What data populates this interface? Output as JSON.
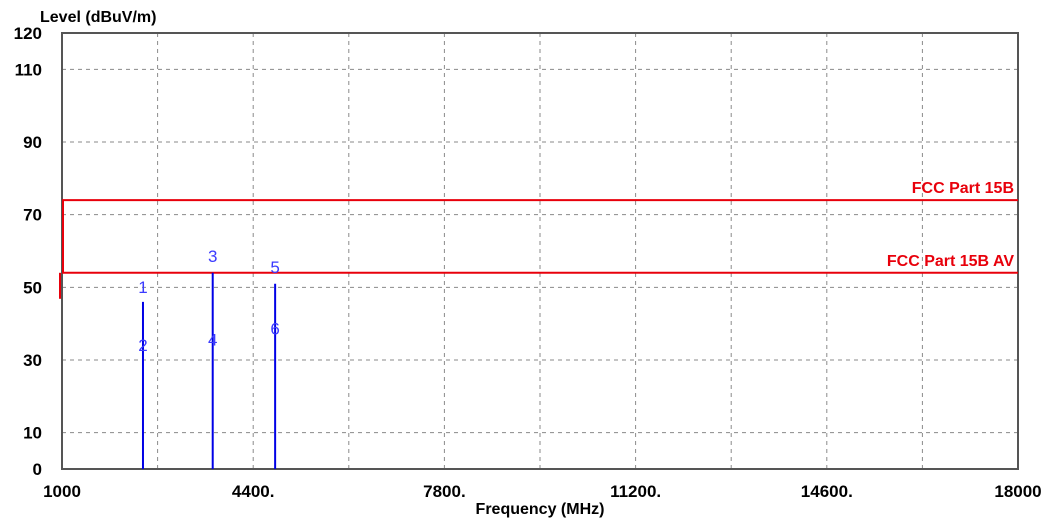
{
  "chart_data": {
    "type": "line",
    "title": "",
    "ylabel": "Level (dBuV/m)",
    "xlabel": "Frequency (MHz)",
    "xlim": [
      1000,
      18000
    ],
    "ylim": [
      0,
      120
    ],
    "x_gridlines": [
      1000,
      2700,
      4400,
      6100,
      7800,
      9500,
      11200,
      12900,
      14600,
      16300,
      18000
    ],
    "y_gridlines": [
      10,
      30,
      50,
      70,
      90,
      110
    ],
    "x_tick_labels": [
      {
        "value": 1000,
        "label": "1000"
      },
      {
        "value": 4400,
        "label": "4400."
      },
      {
        "value": 7800,
        "label": "7800."
      },
      {
        "value": 11200,
        "label": "11200."
      },
      {
        "value": 14600,
        "label": "14600."
      },
      {
        "value": 18000,
        "label": "18000"
      }
    ],
    "y_tick_labels": [
      {
        "value": 0,
        "label": "0"
      },
      {
        "value": 10,
        "label": "10"
      },
      {
        "value": 30,
        "label": "30"
      },
      {
        "value": 50,
        "label": "50"
      },
      {
        "value": 70,
        "label": "70"
      },
      {
        "value": 90,
        "label": "90"
      },
      {
        "value": 110,
        "label": "110"
      },
      {
        "value": 120,
        "label": "120"
      }
    ],
    "grid": true,
    "limit_lines": [
      {
        "name": "FCC Part 15B",
        "value": 74,
        "color": "#e8000b"
      },
      {
        "name": "FCC Part 15B AV",
        "value": 54,
        "color": "#e8000b"
      }
    ],
    "emissions": [
      {
        "frequency": 2440,
        "level": 46,
        "color": "#0000e6"
      },
      {
        "frequency": 3680,
        "level": 54,
        "color": "#0000e6"
      },
      {
        "frequency": 4790,
        "level": 51,
        "color": "#0000e6"
      }
    ],
    "markers": [
      {
        "label": "1",
        "frequency": 2440,
        "level": 48.5,
        "color": "#3b3bff"
      },
      {
        "label": "2",
        "frequency": 2440,
        "level": 32.5,
        "color": "#3b3bff"
      },
      {
        "label": "3",
        "frequency": 3680,
        "level": 57,
        "color": "#3b3bff"
      },
      {
        "label": "4",
        "frequency": 3680,
        "level": 34,
        "color": "#3b3bff"
      },
      {
        "label": "5",
        "frequency": 4790,
        "level": 54,
        "color": "#3b3bff"
      },
      {
        "label": "6",
        "frequency": 4790,
        "level": 37,
        "color": "#3b3bff"
      }
    ]
  }
}
